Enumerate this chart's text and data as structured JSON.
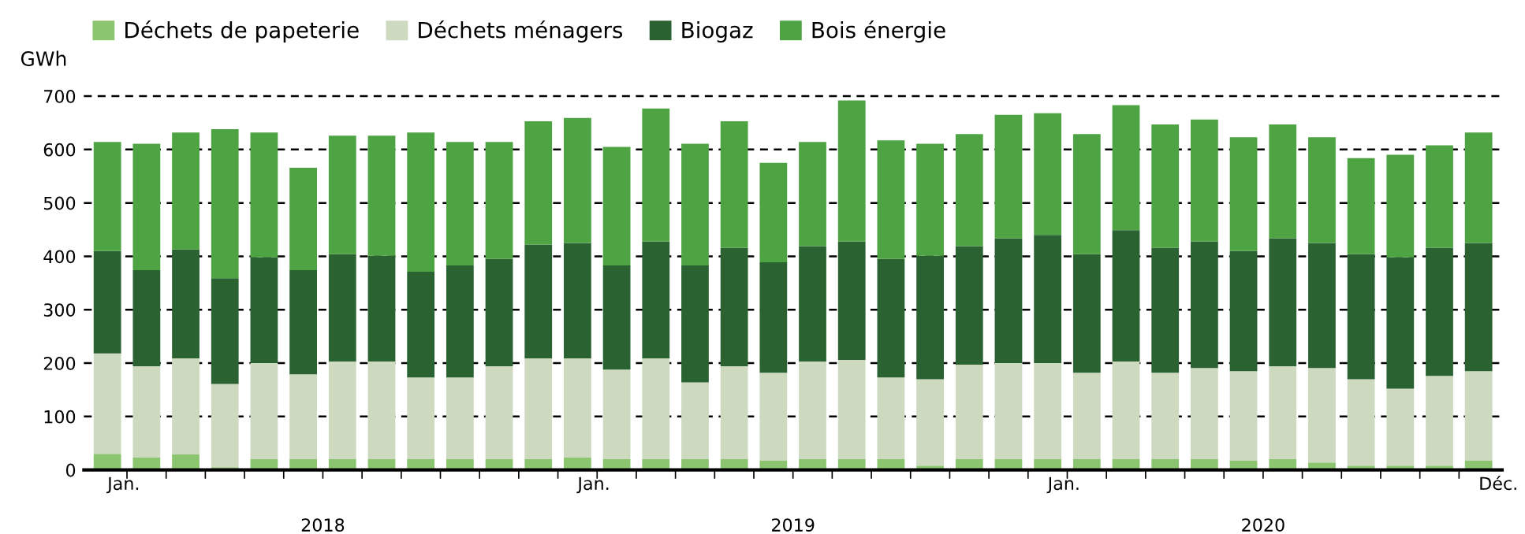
{
  "chart_data": {
    "type": "bar",
    "stacked": true,
    "ylabel": "GWh",
    "categories": [
      "Jan.",
      null,
      null,
      null,
      null,
      null,
      null,
      null,
      null,
      null,
      null,
      null,
      "Jan.",
      null,
      null,
      null,
      null,
      null,
      null,
      null,
      null,
      null,
      null,
      null,
      "Jan.",
      null,
      null,
      null,
      null,
      null,
      null,
      null,
      null,
      null,
      null,
      "Déc."
    ],
    "series": [
      {
        "name": "Déchets de papeterie",
        "color": "#8cc56f",
        "values": [
          30,
          23,
          29,
          5,
          20,
          20,
          20,
          20,
          20,
          20,
          20,
          20,
          23,
          20,
          20,
          20,
          20,
          17,
          20,
          20,
          20,
          8,
          20,
          20,
          20,
          20,
          20,
          20,
          20,
          17,
          20,
          14,
          8,
          8,
          8,
          17
        ]
      },
      {
        "name": "Déchets ménagers",
        "color": "#cddabf",
        "values": [
          188,
          171,
          180,
          156,
          180,
          159,
          183,
          183,
          153,
          153,
          174,
          189,
          186,
          168,
          189,
          144,
          174,
          165,
          183,
          186,
          153,
          162,
          177,
          180,
          180,
          162,
          183,
          162,
          171,
          168,
          174,
          177,
          162,
          144,
          168,
          168
        ]
      },
      {
        "name": "Biogaz",
        "color": "#2a6232",
        "values": [
          192,
          180,
          204,
          198,
          198,
          195,
          201,
          198,
          198,
          210,
          201,
          213,
          216,
          195,
          219,
          219,
          222,
          207,
          216,
          222,
          222,
          231,
          222,
          234,
          240,
          222,
          246,
          234,
          237,
          225,
          240,
          234,
          234,
          246,
          240,
          240
        ]
      },
      {
        "name": "Bois énergie",
        "color": "#4ea342",
        "values": [
          204,
          237,
          219,
          279,
          234,
          192,
          222,
          225,
          261,
          231,
          219,
          231,
          234,
          222,
          249,
          228,
          237,
          186,
          195,
          264,
          222,
          210,
          210,
          231,
          228,
          225,
          234,
          231,
          228,
          213,
          213,
          198,
          180,
          192,
          192,
          207
        ]
      }
    ],
    "ylim": [
      0,
      700
    ],
    "yticks": [
      0,
      100,
      200,
      300,
      400,
      500,
      600,
      700
    ],
    "grid": "y",
    "legend": "top left",
    "annotations": [
      "2018",
      "2019",
      "2020"
    ]
  }
}
